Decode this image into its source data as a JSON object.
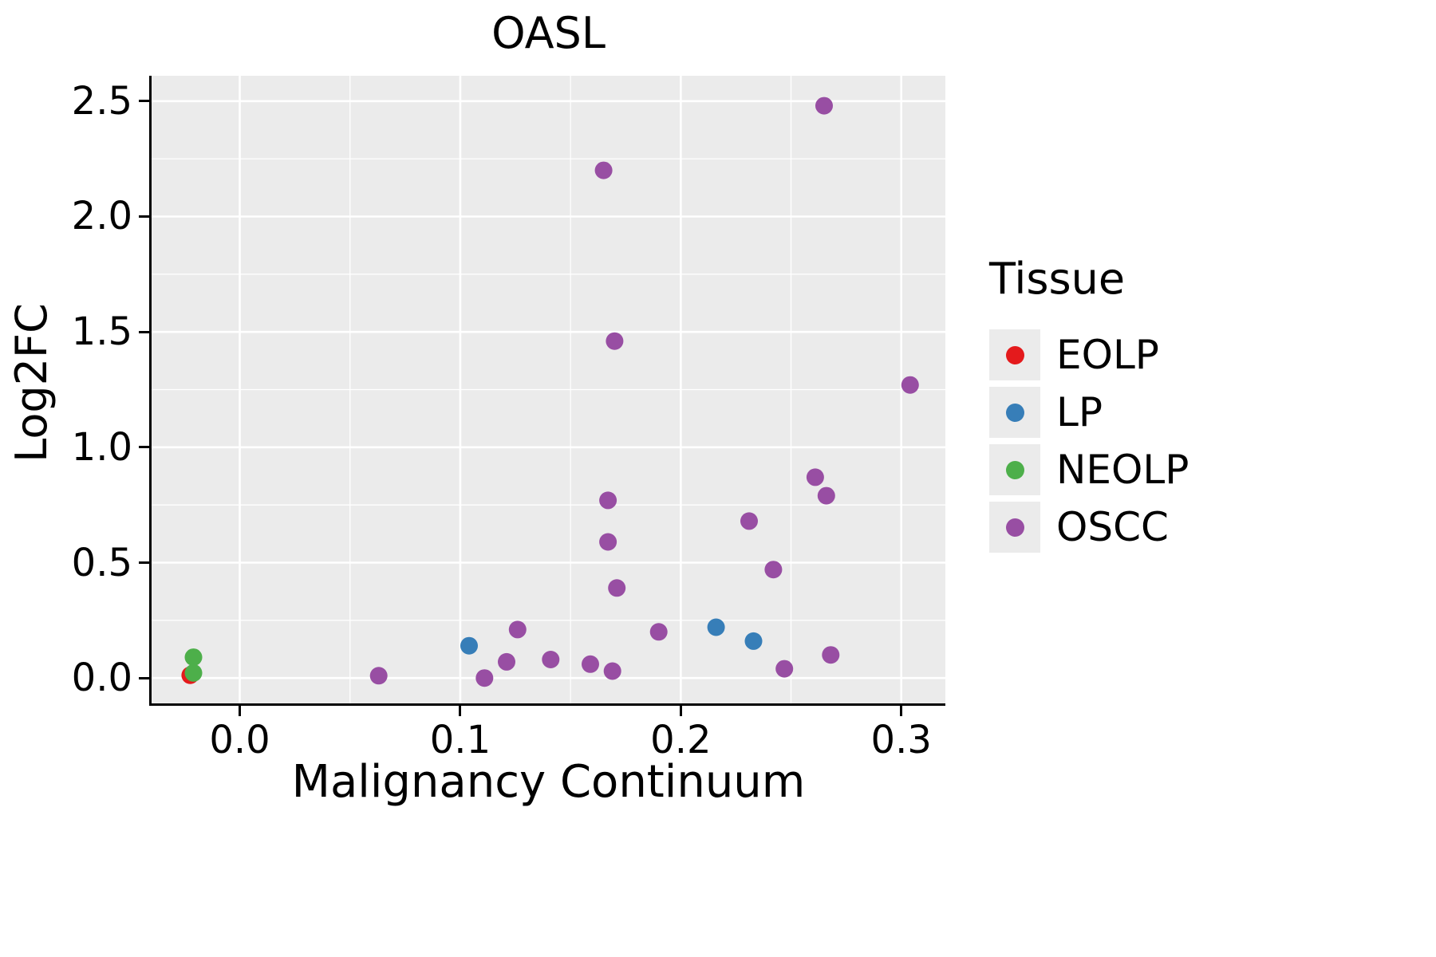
{
  "chart_data": {
    "type": "scatter",
    "title": "OASL",
    "xlabel": "Malignancy Continuum",
    "ylabel": "Log2FC",
    "xlim": [
      -0.04,
      0.32
    ],
    "ylim": [
      -0.11,
      2.61
    ],
    "x_ticks": [
      0.0,
      0.1,
      0.2,
      0.3
    ],
    "x_tick_labels": [
      "0.0",
      "0.1",
      "0.2",
      "0.3"
    ],
    "y_ticks": [
      0.0,
      0.5,
      1.0,
      1.5,
      2.0,
      2.5
    ],
    "y_tick_labels": [
      "0.0",
      "0.5",
      "1.0",
      "1.5",
      "2.0",
      "2.5"
    ],
    "x_minor_ticks": [
      0.05,
      0.15,
      0.25
    ],
    "y_minor_ticks": [
      0.25,
      0.75,
      1.25,
      1.75,
      2.25
    ],
    "legend": {
      "title": "Tissue",
      "items": [
        {
          "label": "EOLP",
          "color": "#E41A1C"
        },
        {
          "label": "LP",
          "color": "#377EB8"
        },
        {
          "label": "NEOLP",
          "color": "#4DAF4A"
        },
        {
          "label": "OSCC",
          "color": "#984EA3"
        }
      ]
    },
    "series": [
      {
        "name": "EOLP",
        "color": "#E41A1C",
        "points": [
          [
            -0.0225,
            0.012
          ]
        ]
      },
      {
        "name": "LP",
        "color": "#377EB8",
        "points": [
          [
            0.104,
            0.14
          ],
          [
            0.216,
            0.22
          ],
          [
            0.233,
            0.16
          ]
        ]
      },
      {
        "name": "NEOLP",
        "color": "#4DAF4A",
        "points": [
          [
            -0.021,
            0.09
          ],
          [
            -0.021,
            0.022
          ]
        ]
      },
      {
        "name": "OSCC",
        "color": "#984EA3",
        "points": [
          [
            0.063,
            0.01
          ],
          [
            0.111,
            0.0
          ],
          [
            0.121,
            0.07
          ],
          [
            0.126,
            0.21
          ],
          [
            0.141,
            0.08
          ],
          [
            0.159,
            0.06
          ],
          [
            0.165,
            2.2
          ],
          [
            0.167,
            0.77
          ],
          [
            0.167,
            0.59
          ],
          [
            0.169,
            0.03
          ],
          [
            0.17,
            1.46
          ],
          [
            0.171,
            0.39
          ],
          [
            0.19,
            0.2
          ],
          [
            0.231,
            0.68
          ],
          [
            0.242,
            0.47
          ],
          [
            0.247,
            0.04
          ],
          [
            0.261,
            0.87
          ],
          [
            0.265,
            2.48
          ],
          [
            0.266,
            0.79
          ],
          [
            0.268,
            0.1
          ],
          [
            0.304,
            1.27
          ]
        ]
      }
    ],
    "style": {
      "panel_bg": "#EBEBEB",
      "grid_color": "#FFFFFF",
      "point_radius": 11
    }
  }
}
